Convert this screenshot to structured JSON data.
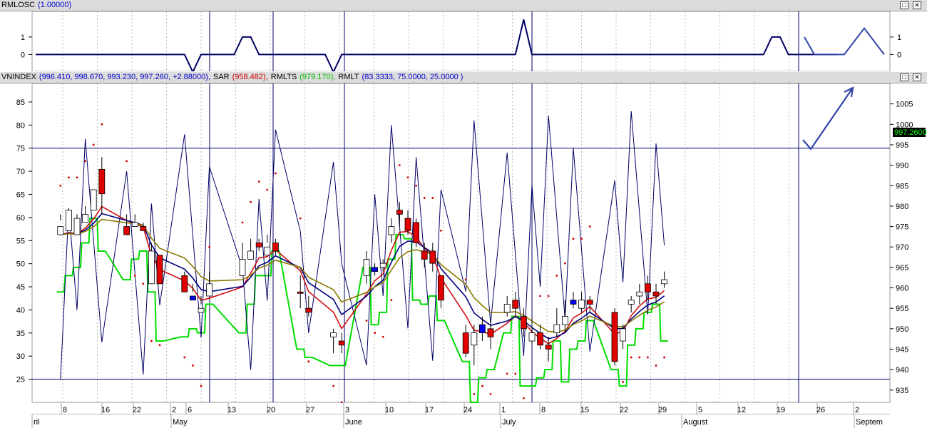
{
  "osc_panel": {
    "name": "RMLOSC",
    "value": "(1.00000)",
    "yticks": [
      "1",
      "0"
    ],
    "right_yticks": [
      "1",
      "0"
    ]
  },
  "price_panel": {
    "index_name": "VNINDEX",
    "ohlc": "(996.410, 998.670, 993.230, 997.260, +2.88000),",
    "sar_name": "SAR",
    "sar_value": "(958.482),",
    "rmlts_name": "RMLTS",
    "rmlts_value": "(979.170),",
    "rmlt_name": "RMLT",
    "rmlt_value": "(83.3333, 75.0000, 25.0000 )",
    "left_yticks": [
      "85",
      "80",
      "75",
      "70",
      "65",
      "60",
      "55",
      "50",
      "45",
      "40",
      "35",
      "30",
      "25"
    ],
    "right_yticks": [
      "1005",
      "1000",
      "995",
      "990",
      "985",
      "980",
      "975",
      "970",
      "965",
      "960",
      "955",
      "950",
      "945",
      "940",
      "935"
    ],
    "last_price_label": "997.2600"
  },
  "x_axis": {
    "day_labels": [
      "8",
      "16",
      "22",
      "2",
      "6",
      "13",
      "20",
      "27",
      "3",
      "10",
      "17",
      "24",
      "1",
      "8",
      "15",
      "22",
      "29",
      "5",
      "12",
      "19",
      "26",
      "2"
    ],
    "month_labels": [
      "ril",
      "May",
      "June",
      "July",
      "August",
      "Septem"
    ]
  },
  "colors": {
    "sar": "#cc0000",
    "rmlts": "#00dd00",
    "rmlt": "#000066",
    "up_candle": "#ffffff",
    "down_candle": "#e00000",
    "blue_candle": "#0000ee",
    "ma_red": "#d01010",
    "ma_navy": "#000080",
    "ma_olive": "#8b7a00"
  },
  "chart_data": [
    {
      "type": "line",
      "title": "RMLOSC",
      "ylim": [
        -0.8,
        2.3
      ],
      "series": [
        {
          "name": "RMLOSC",
          "x": [
            0,
            1,
            2,
            3,
            4,
            5,
            6,
            7,
            8,
            9,
            10,
            11,
            12,
            13,
            14,
            15,
            16,
            17,
            18,
            19,
            20,
            21,
            22,
            23,
            24,
            25,
            26,
            27,
            28,
            29,
            30,
            31,
            32,
            33,
            34,
            35,
            36,
            37,
            38,
            39,
            40,
            41,
            42,
            43,
            44,
            45,
            46,
            47,
            48,
            49,
            50,
            51,
            52,
            53,
            54,
            55,
            56,
            57,
            58,
            59,
            60,
            61,
            62,
            63,
            64,
            65,
            66,
            67,
            68,
            69,
            70,
            71,
            72,
            73,
            74,
            75,
            76,
            77,
            78,
            79,
            80,
            81,
            82,
            83,
            84,
            85,
            86,
            87,
            88,
            89,
            90,
            91,
            92,
            93,
            94,
            95,
            96,
            97
          ],
          "values": [
            0,
            0,
            0,
            0,
            0,
            0,
            0,
            0,
            0,
            0,
            0,
            0,
            0,
            0,
            0,
            0,
            0,
            0,
            0,
            -1,
            0,
            0,
            0,
            0,
            0,
            1,
            1,
            0,
            0,
            0,
            0,
            0,
            0,
            0,
            0,
            0,
            -1,
            0,
            0,
            0,
            0,
            0,
            0,
            0,
            0,
            0,
            0,
            0,
            0,
            0,
            0,
            0,
            0,
            0,
            0,
            0,
            0,
            0,
            0,
            2,
            0,
            0,
            0,
            0,
            0,
            0,
            0,
            0,
            0,
            0,
            0,
            0,
            0,
            0,
            0,
            0,
            0,
            0,
            0,
            0,
            0,
            0,
            0,
            0,
            0,
            0,
            0,
            0,
            0,
            1,
            1,
            0,
            0,
            0,
            0,
            0,
            0,
            0
          ]
        }
      ],
      "projection": {
        "x": [
          90,
          91,
          94,
          96,
          98
        ],
        "values": [
          1,
          0,
          0,
          1.5,
          0
        ]
      }
    },
    {
      "type": "line",
      "title": "VNINDEX",
      "ylim_price": [
        932,
        1010
      ],
      "ylim_rmlt": [
        20,
        89
      ],
      "x_start_day": "April 1",
      "candles": [
        [
          3,
          0,
          -2,
          3,
          1.5,
          "w"
        ],
        [
          4,
          4,
          -1,
          2,
          3,
          "w"
        ],
        [
          5,
          2,
          -2,
          3,
          2,
          "w"
        ],
        [
          6,
          3,
          1,
          5,
          3,
          "w"
        ],
        [
          7,
          9,
          4,
          6,
          5,
          "w"
        ],
        [
          8,
          14,
          8,
          17,
          3,
          "r"
        ],
        [
          11,
          0,
          -2,
          3,
          0,
          "r"
        ],
        [
          12,
          1,
          0,
          3,
          1,
          "w"
        ],
        [
          13,
          0,
          -1,
          1,
          -0.5,
          "r"
        ],
        [
          14,
          -6,
          -14,
          -4,
          -12,
          "w"
        ],
        [
          15,
          -7,
          -14,
          -7,
          -13,
          "r"
        ],
        [
          18,
          -12,
          -16,
          -11,
          -14,
          "r"
        ],
        [
          19,
          -18,
          -17,
          -14,
          -16,
          "b"
        ],
        [
          20,
          -20,
          -21,
          -17,
          -19,
          "w"
        ],
        [
          21,
          -14,
          -17,
          -11,
          -15,
          "w"
        ],
        [
          25,
          -8,
          -12,
          -4,
          -10,
          "w"
        ],
        [
          26,
          -6,
          -8,
          -3,
          -6,
          "w"
        ],
        [
          27,
          -5,
          -4,
          -3,
          -6,
          "r"
        ],
        [
          28,
          -5,
          -7,
          -2,
          -4,
          "w"
        ],
        [
          29,
          -6,
          -4,
          -3,
          -7,
          "r"
        ],
        [
          32,
          -16,
          -16,
          -12,
          -20,
          "r"
        ],
        [
          33,
          -20,
          -21,
          -17,
          -22,
          "r"
        ],
        [
          36,
          -27,
          -26,
          -25,
          -31,
          "w"
        ],
        [
          37,
          -28,
          -29,
          -26,
          -31,
          "r"
        ],
        [
          40,
          -12,
          -8,
          -6,
          -14,
          "w"
        ],
        [
          41,
          -11,
          -10,
          -9,
          -12,
          "b"
        ],
        [
          42,
          -9,
          -10,
          -8,
          -11,
          "w"
        ],
        [
          43,
          -2,
          0,
          2,
          -4,
          "w"
        ],
        [
          44,
          4,
          3,
          6,
          0,
          "r"
        ],
        [
          45,
          2,
          -1,
          4,
          -2,
          "r"
        ],
        [
          46,
          1,
          -4,
          2,
          -5,
          "r"
        ],
        [
          47,
          -6,
          -8,
          -4,
          -10,
          "r"
        ],
        [
          48,
          -6,
          -9,
          -4,
          -11,
          "r"
        ],
        [
          49,
          -12,
          -18,
          -12,
          -20,
          "r"
        ],
        [
          52,
          -26,
          -31,
          -24,
          -32,
          "r"
        ],
        [
          53,
          -26,
          -29,
          -24,
          -34,
          "w"
        ],
        [
          54,
          -24,
          -26,
          -22,
          -28,
          "b"
        ],
        [
          55,
          -25,
          -27,
          -23,
          -30,
          "r"
        ],
        [
          57,
          -19,
          -21,
          -17,
          -22,
          "w"
        ],
        [
          58,
          -18,
          -20,
          -16,
          -22,
          "r"
        ],
        [
          59,
          -22,
          -25,
          -20,
          -27,
          "r"
        ],
        [
          60,
          -26,
          -28,
          -22,
          -29,
          "w"
        ],
        [
          61,
          -26,
          -29,
          -24,
          -30,
          "r"
        ],
        [
          62,
          -29,
          -30,
          -27,
          -33,
          "r"
        ],
        [
          63,
          -24,
          -26,
          -20,
          -27,
          "w"
        ],
        [
          64,
          -22,
          -24,
          -18,
          -26,
          "w"
        ],
        [
          65,
          -18,
          -19,
          -16,
          -20,
          "b"
        ],
        [
          66,
          -18,
          -20,
          -16,
          -21,
          "w"
        ],
        [
          67,
          -19,
          -18,
          -17,
          -21,
          "r"
        ],
        [
          70,
          -21,
          -33,
          -20,
          -34,
          "r"
        ],
        [
          71,
          -28,
          -25,
          -24,
          -30,
          "w"
        ],
        [
          72,
          -19,
          -18,
          -17,
          -21,
          "w"
        ],
        [
          73,
          -16,
          -17,
          -14,
          -19,
          "w"
        ],
        [
          74,
          -14,
          -16,
          -12,
          -18,
          "r"
        ],
        [
          75,
          -16,
          -17,
          -14,
          -19,
          "r"
        ],
        [
          76,
          -13,
          -14,
          -11,
          -15,
          "w"
        ]
      ],
      "candles_note": "index offset, open, close, high, low (points relative to 975), color",
      "series": [
        {
          "name": "SAR",
          "kind": "dots"
        },
        {
          "name": "RMLTS",
          "kind": "step"
        },
        {
          "name": "RMLT",
          "kind": "line"
        }
      ]
    }
  ]
}
